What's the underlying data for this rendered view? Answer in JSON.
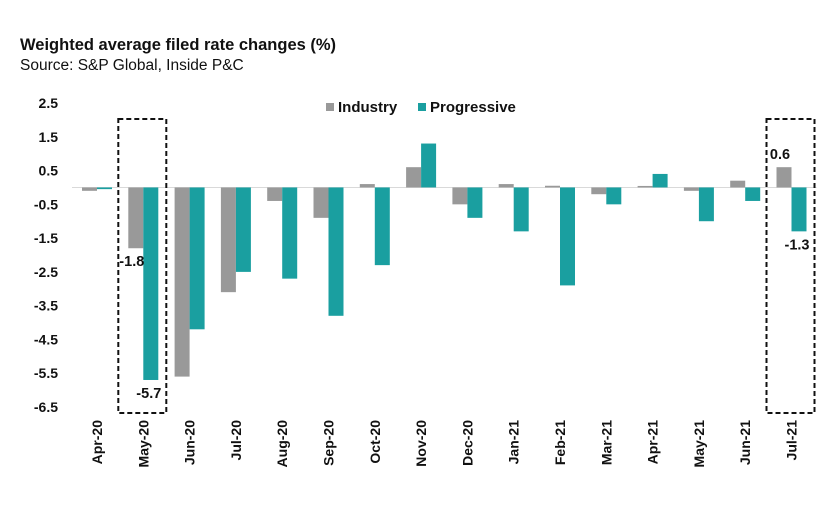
{
  "chart_data": {
    "type": "bar",
    "title": "Weighted average filed rate changes (%)",
    "subtitle": "Source: S&P Global, Inside P&C",
    "xlabel": "",
    "ylabel": "",
    "ylim": [
      -6.5,
      2.5
    ],
    "yticks": [
      "2.5",
      "1.5",
      "0.5",
      "-0.5",
      "-1.5",
      "-2.5",
      "-3.5",
      "-4.5",
      "-5.5",
      "-6.5"
    ],
    "ytick_values": [
      2.5,
      1.5,
      0.5,
      -0.5,
      -1.5,
      -2.5,
      -3.5,
      -4.5,
      -5.5,
      -6.5
    ],
    "grid": false,
    "legend_position": "top-center",
    "categories": [
      "Apr-20",
      "May-20",
      "Jun-20",
      "Jul-20",
      "Aug-20",
      "Sep-20",
      "Oct-20",
      "Nov-20",
      "Dec-20",
      "Jan-21",
      "Feb-21",
      "Mar-21",
      "Apr-21",
      "May-21",
      "Jun-21",
      "Jul-21"
    ],
    "series": [
      {
        "name": "Industry",
        "color": "#999999",
        "values": [
          -0.1,
          -1.8,
          -5.6,
          -3.1,
          -0.4,
          -0.9,
          0.1,
          0.6,
          -0.5,
          0.1,
          0.05,
          -0.2,
          0.0,
          -0.1,
          0.2,
          0.6
        ]
      },
      {
        "name": "Progressive",
        "color": "#1a9fa0",
        "values": [
          -0.05,
          -5.7,
          -4.2,
          -2.5,
          -2.7,
          -3.8,
          -2.3,
          1.3,
          -0.9,
          -1.3,
          -2.9,
          -0.5,
          0.4,
          -1.0,
          -0.4,
          -1.3
        ]
      }
    ],
    "annotations": [
      {
        "category": "May-20",
        "series": "Industry",
        "text": "-1.8"
      },
      {
        "category": "May-20",
        "series": "Progressive",
        "text": "-5.7"
      },
      {
        "category": "Jul-21",
        "series": "Industry",
        "text": "0.6"
      },
      {
        "category": "Jul-21",
        "series": "Progressive",
        "text": "-1.3"
      }
    ],
    "highlight_boxes": [
      "May-20",
      "Jul-21"
    ]
  }
}
